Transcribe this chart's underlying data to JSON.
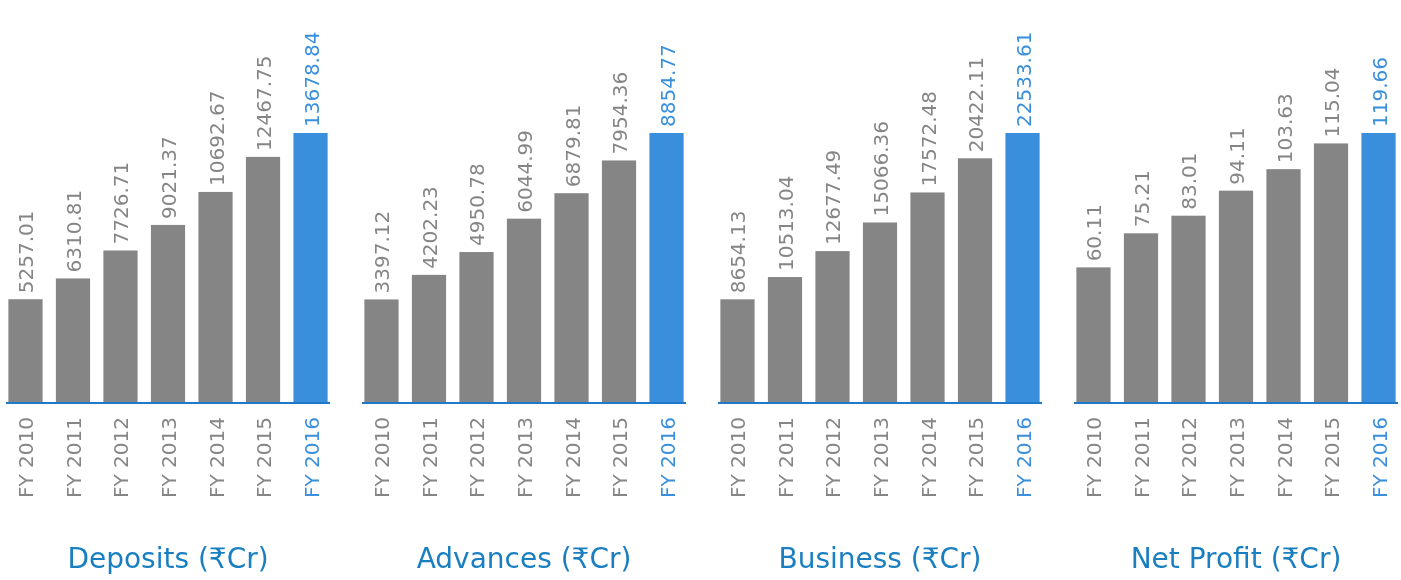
{
  "chart_data": [
    {
      "type": "bar",
      "xlabel": "Deposits (₹Cr)",
      "categories": [
        "FY 2010",
        "FY 2011",
        "FY 2012",
        "FY 2013",
        "FY 2014",
        "FY 2015",
        "FY 2016"
      ],
      "values": [
        5257.01,
        6310.81,
        7726.71,
        9021.37,
        10692.67,
        12467.75,
        13678.84
      ],
      "colors": [
        "#858585",
        "#858585",
        "#858585",
        "#858585",
        "#858585",
        "#858585",
        "#3a8fdc"
      ],
      "data_labels": true,
      "tick_labels": "x"
    },
    {
      "type": "bar",
      "xlabel": "Advances (₹Cr)",
      "categories": [
        "FY 2010",
        "FY 2011",
        "FY 2012",
        "FY 2013",
        "FY 2014",
        "FY 2015",
        "FY 2016"
      ],
      "values": [
        3397.12,
        4202.23,
        4950.78,
        6044.99,
        6879.81,
        7954.36,
        8854.77
      ],
      "colors": [
        "#858585",
        "#858585",
        "#858585",
        "#858585",
        "#858585",
        "#858585",
        "#3a8fdc"
      ],
      "data_labels": true,
      "tick_labels": "x"
    },
    {
      "type": "bar",
      "xlabel": "Business (₹Cr)",
      "categories": [
        "FY 2010",
        "FY 2011",
        "FY 2012",
        "FY 2013",
        "FY 2014",
        "FY 2015",
        "FY 2016"
      ],
      "values": [
        8654.13,
        10513.04,
        12677.49,
        15066.36,
        17572.48,
        20422.11,
        22533.61
      ],
      "colors": [
        "#858585",
        "#858585",
        "#858585",
        "#858585",
        "#858585",
        "#858585",
        "#3a8fdc"
      ],
      "data_labels": true,
      "tick_labels": "x"
    },
    {
      "type": "bar",
      "xlabel": "Net Profit (₹Cr)",
      "categories": [
        "FY 2010",
        "FY 2011",
        "FY 2012",
        "FY 2013",
        "FY 2014",
        "FY 2015",
        "FY 2016"
      ],
      "values": [
        60.11,
        75.21,
        83.01,
        94.11,
        103.63,
        115.04,
        119.66
      ],
      "colors": [
        "#858585",
        "#858585",
        "#858585",
        "#858585",
        "#858585",
        "#858585",
        "#3a8fdc"
      ],
      "data_labels": true,
      "tick_labels": "x"
    }
  ]
}
